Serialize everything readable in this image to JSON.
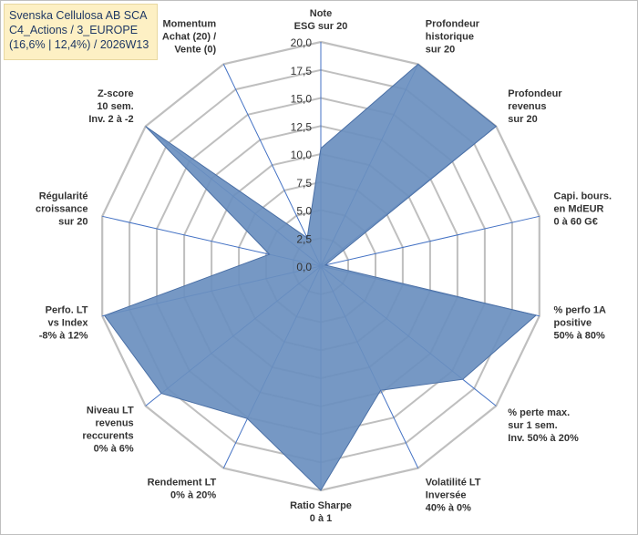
{
  "title": {
    "line1": "Svenska Cellulosa AB SCA",
    "line2": "C4_Actions / 3_EUROPE",
    "line3": "(16,6% | 12,4%) / 2026W13"
  },
  "chart_data": {
    "type": "radar",
    "rmax": 20,
    "ticks": [
      "0,0",
      "2,5",
      "5,0",
      "7,5",
      "10,0",
      "12,5",
      "15,0",
      "17,5",
      "20,0"
    ],
    "axes": [
      {
        "label": [
          "Note",
          "ESG sur 20"
        ],
        "value": 10.5
      },
      {
        "label": [
          "Profondeur",
          "historique",
          "sur 20"
        ],
        "value": 20
      },
      {
        "label": [
          "Profondeur",
          "revenus",
          "sur 20"
        ],
        "value": 20
      },
      {
        "label": [
          "Capi. bours.",
          "en MdEUR",
          "0 à 60 G€"
        ],
        "value": 0.4
      },
      {
        "label": [
          "% perfo 1A",
          "positive",
          "50% à 80%"
        ],
        "value": 19.7
      },
      {
        "label": [
          "% perte max.",
          "sur 1 sem.",
          "Inv. 50% à 20%"
        ],
        "value": 16.2
      },
      {
        "label": [
          "Volatilité LT",
          "Inversée",
          "40% à 0%"
        ],
        "value": 12.3
      },
      {
        "label": [
          "Ratio Sharpe",
          "0 à 1"
        ],
        "value": 20
      },
      {
        "label": [
          "Rendement LT",
          "0% à 20%"
        ],
        "value": 15.1
      },
      {
        "label": [
          "Niveau LT",
          "revenus",
          "reccurents",
          "0% à 6%"
        ],
        "value": 18.2
      },
      {
        "label": [
          "Perfo. LT",
          "vs Index",
          "-8% à 12%"
        ],
        "value": 19.8
      },
      {
        "label": [
          "Régularité",
          "croissance",
          "sur 20"
        ],
        "value": 4.7
      },
      {
        "label": [
          "Z-score",
          "10 sem.",
          "Inv. 2 à -2"
        ],
        "value": 20
      },
      {
        "label": [
          "Momentum",
          "Achat (20) /",
          "Vente (0)"
        ],
        "value": 2.8
      }
    ],
    "colors": {
      "fill": "#6a8fbf",
      "stroke": "#4a6fa5",
      "grid": "#bfbfbf",
      "spoke": "#4472c4"
    }
  }
}
